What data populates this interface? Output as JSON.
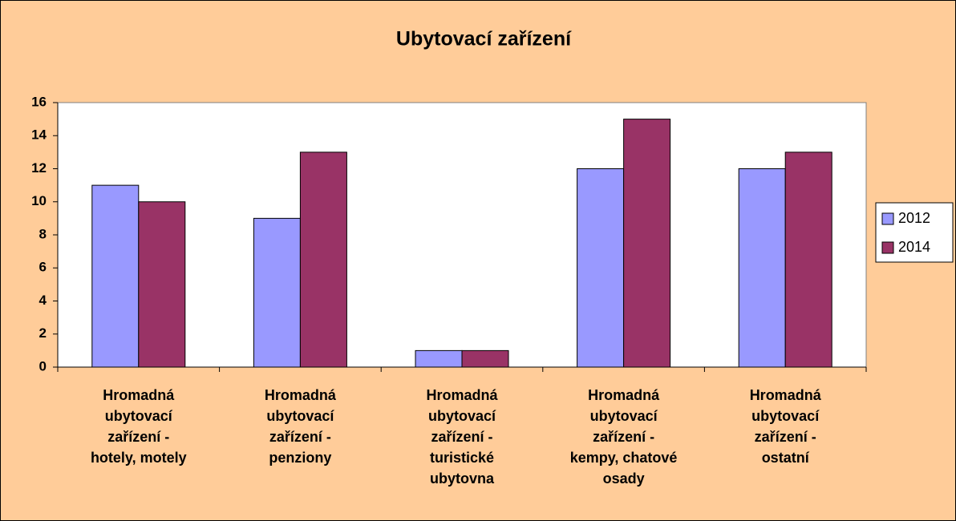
{
  "chart_data": {
    "type": "bar",
    "title": "Ubytovací zařízení",
    "categories": [
      "Hromadná\nubytovací\nzařízení  -\nhotely, motely",
      "Hromadná\nubytovací\nzařízení -\npenziony",
      "Hromadná\nubytovací\nzařízení  -\nturistické\nubytovna",
      "Hromadná\nubytovací\nzařízení  -\nkempy, chatové\nosady",
      "Hromadná\nubytovací\nzařízení  -\nostatní"
    ],
    "series": [
      {
        "name": "2012",
        "color": "#9999ff",
        "values": [
          11,
          9,
          1,
          12,
          12
        ]
      },
      {
        "name": "2014",
        "color": "#993366",
        "values": [
          10,
          13,
          1,
          15,
          13
        ]
      }
    ],
    "ylim": [
      0,
      16
    ],
    "yticks": [
      0,
      2,
      4,
      6,
      8,
      10,
      12,
      14,
      16
    ],
    "grid": false,
    "legend": "right"
  }
}
